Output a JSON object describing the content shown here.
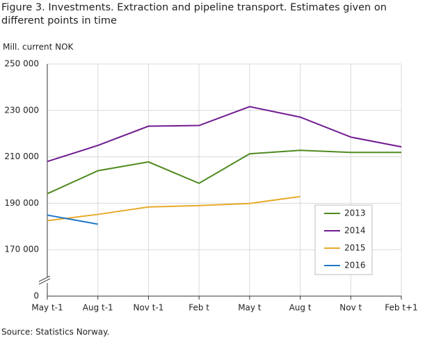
{
  "chart_data": {
    "type": "line",
    "title": "Figure 3. Investments. Extraction and pipeline transport. Estimates given on different points in time",
    "y_label": "Mill. current NOK",
    "source": "Source: Statistics Norway.",
    "categories": [
      "May t-1",
      "Aug t-1",
      "Nov t-1",
      "Feb t",
      "May t",
      "Aug t",
      "Nov t",
      "Feb t+1"
    ],
    "series": [
      {
        "name": "2013",
        "color": "#4e8a1e",
        "values": [
          194100,
          204000,
          207800,
          198600,
          211300,
          212800,
          211900,
          211900
        ]
      },
      {
        "name": "2014",
        "color": "#6f1a91",
        "values": [
          208000,
          214900,
          223200,
          223500,
          231600,
          227100,
          218500,
          214300
        ]
      },
      {
        "name": "2015",
        "color": "#e8aa2a",
        "values": [
          182500,
          185200,
          188400,
          189000,
          189900,
          192900,
          null,
          null
        ]
      },
      {
        "name": "2016",
        "color": "#1f78c8",
        "values": [
          184900,
          181000,
          null,
          null,
          null,
          null,
          null,
          null
        ]
      }
    ],
    "ylim": [
      0,
      250000
    ],
    "yticks": [
      0,
      {
        "value": 170000,
        "label": "170 000"
      },
      {
        "value": 190000,
        "label": "190 000"
      },
      {
        "value": 210000,
        "label": "210 000"
      },
      {
        "value": 230000,
        "label": "230 000"
      },
      {
        "value": 250000,
        "label": "250 000"
      }
    ],
    "axis_break": true,
    "grid": true
  }
}
